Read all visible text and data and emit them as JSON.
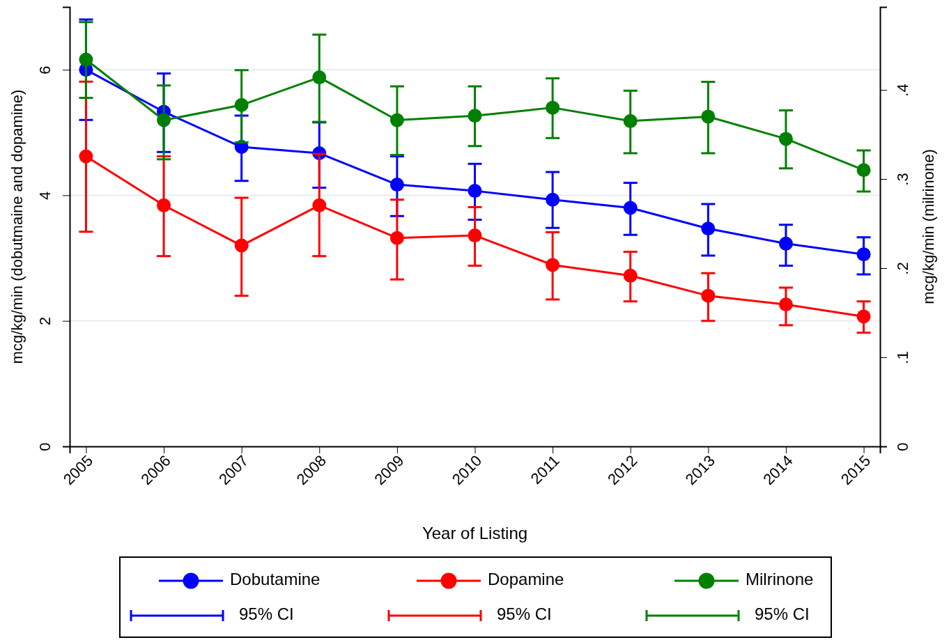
{
  "chart_data": {
    "type": "line",
    "xlabel": "Year of Listing",
    "ylabel": "mcg/kg/min (dobutmaine and dopamine)",
    "y2label": "mcg/kg/min (milrinone)",
    "categories": [
      "2005",
      "2006",
      "2007",
      "2008",
      "2009",
      "2010",
      "2011",
      "2012",
      "2013",
      "2014",
      "2015"
    ],
    "series": [
      {
        "name": "Dobutamine",
        "color": "#0000ff",
        "values": [
          6.0,
          5.33,
          4.77,
          4.67,
          4.17,
          4.07,
          3.93,
          3.8,
          3.47,
          3.23,
          3.06
        ],
        "errors": [
          [
            5.2,
            6.8
          ],
          [
            4.69,
            5.94
          ],
          [
            4.23,
            5.27
          ],
          [
            4.12,
            5.16
          ],
          [
            3.67,
            4.62
          ],
          [
            3.61,
            4.5
          ],
          [
            3.48,
            4.37
          ],
          [
            3.37,
            4.2
          ],
          [
            3.04,
            3.86
          ],
          [
            2.88,
            3.53
          ],
          [
            2.74,
            3.33
          ]
        ]
      },
      {
        "name": "Dopamine",
        "color": "#ff0000",
        "values": [
          4.62,
          3.84,
          3.2,
          3.84,
          3.32,
          3.36,
          2.89,
          2.72,
          2.4,
          2.26,
          2.07
        ],
        "errors": [
          [
            3.42,
            5.81
          ],
          [
            3.03,
            4.62
          ],
          [
            2.4,
            3.96
          ],
          [
            3.03,
            4.66
          ],
          [
            2.66,
            3.93
          ],
          [
            2.88,
            3.81
          ],
          [
            2.34,
            3.41
          ],
          [
            2.31,
            3.1
          ],
          [
            2.0,
            2.76
          ],
          [
            1.93,
            2.53
          ],
          [
            1.81,
            2.31
          ]
        ]
      },
      {
        "name": "Milrinone",
        "color": "#008000",
        "axis": "y2",
        "values": [
          0.434,
          0.366,
          0.383,
          0.414,
          0.366,
          0.371,
          0.38,
          0.365,
          0.37,
          0.345,
          0.31
        ],
        "errors": [
          [
            0.391,
            0.476
          ],
          [
            0.322,
            0.405
          ],
          [
            0.341,
            0.422
          ],
          [
            0.364,
            0.462
          ],
          [
            0.327,
            0.404
          ],
          [
            0.337,
            0.404
          ],
          [
            0.346,
            0.413
          ],
          [
            0.329,
            0.399
          ],
          [
            0.329,
            0.409
          ],
          [
            0.312,
            0.377
          ],
          [
            0.286,
            0.332
          ]
        ]
      }
    ],
    "annotations": [
      "95% CI",
      "95% CI",
      "95% CI"
    ],
    "ylim": [
      0,
      7.0
    ],
    "yticks": [
      0,
      2,
      4,
      6
    ],
    "y2lim": [
      0,
      0.493
    ],
    "y2ticks": [
      0,
      {
        "value": 0.1,
        "label": ".1"
      },
      {
        "value": 0.2,
        "label": ".2"
      },
      {
        "value": 0.3,
        "label": ".3"
      },
      {
        "value": 0.4,
        "label": ".4"
      }
    ],
    "grid": "y",
    "legend": "bottom",
    "marker": "circle",
    "line_style": "solid"
  }
}
